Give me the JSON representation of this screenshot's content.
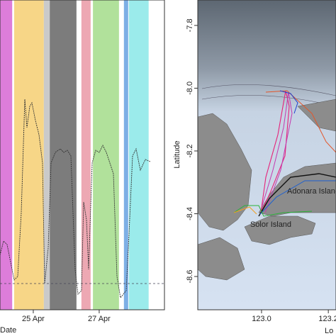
{
  "chart_data": [
    {
      "type": "interval",
      "x_label": "Date",
      "xlim": [
        23.99,
        28.98
      ],
      "xticks": [
        {
          "value": 25,
          "label": "25 Apr"
        },
        {
          "value": 27,
          "label": "27 Apr"
        }
      ],
      "intervals": [
        {
          "start": 23.99,
          "end": 24.36,
          "color": "#d96fd6"
        },
        {
          "start": 24.42,
          "end": 25.32,
          "color": "#f6d27a"
        },
        {
          "start": 25.32,
          "end": 25.5,
          "color": "#c4c4c4"
        },
        {
          "start": 25.5,
          "end": 26.31,
          "color": "#6e6e6e"
        },
        {
          "start": 26.46,
          "end": 26.74,
          "color": "#eb9eab"
        },
        {
          "start": 26.81,
          "end": 27.6,
          "color": "#a8de90"
        },
        {
          "start": 27.75,
          "end": 27.88,
          "color": "#6fa6e2"
        },
        {
          "start": 27.9,
          "end": 28.5,
          "color": "#90e9e9"
        }
      ]
    },
    {
      "type": "map",
      "y_label": "Latitude",
      "x_label": "Lo",
      "xlim": [
        122.809,
        123.223
      ],
      "ylim": [
        -8.706,
        -7.719
      ],
      "xticks": [
        {
          "value": 123.0,
          "label": "123.0"
        },
        {
          "value": 123.2,
          "label": "123.2"
        }
      ],
      "yticks": [
        -7.8,
        {
          "value": -8.0,
          "label": "-8.0"
        },
        -8.2,
        -8.4,
        -8.6
      ],
      "annotations": [
        "Adonara Island",
        "Solor Island"
      ]
    }
  ]
}
